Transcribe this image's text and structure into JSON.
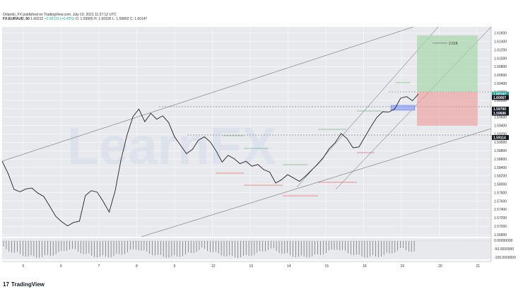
{
  "header": {
    "publisher": "Orlando_FX published on TradingView.com, July 19, 2021 11:27:12 UTC",
    "symbol": "FX:EURAUD, 60",
    "last": "1.60232",
    "change": "+0.00723 (+0.45%)",
    "ohlc": "O: 1.59905  H: 1.60335  L: 1.59892  C: 1.60147"
  },
  "watermark": "LearnFX",
  "footer": {
    "brand": "TradingView",
    "logo_glyph": "17"
  },
  "annotations": {
    "fib_label": "2.618"
  },
  "price_tags": [
    {
      "value": "1.60147",
      "color": "#26a69a"
    },
    {
      "value": "1.60067",
      "color": "#131722"
    },
    {
      "value": "1.59790",
      "color": "#131722"
    },
    {
      "value": "1.59696",
      "color": "#131722"
    },
    {
      "value": "1.59114",
      "color": "#131722"
    }
  ],
  "chart_data": {
    "type": "line",
    "title": "",
    "xlabel": "",
    "ylabel": "",
    "x_ticks": [
      "5",
      "6",
      "7",
      "8",
      "9",
      "12",
      "13",
      "14",
      "15",
      "16",
      "19",
      "20",
      "21"
    ],
    "y_ticks": [
      "1.61600",
      "1.61400",
      "1.61200",
      "1.61000",
      "1.60800",
      "1.60600",
      "1.60400",
      "1.60200",
      "1.60000",
      "1.59800",
      "1.59600",
      "1.59400",
      "1.59200",
      "1.59000",
      "1.58800",
      "1.58600",
      "1.58400",
      "1.58200",
      "1.58000",
      "1.57800",
      "1.57600",
      "1.57400",
      "1.57200",
      "1.57000",
      "1.56800"
    ],
    "ylim": [
      1.5675,
      1.6175
    ],
    "oscillator_ticks": [
      "0.00000000",
      "-50.0000000",
      "-100.0000000"
    ],
    "grid": true,
    "series": [
      {
        "values": [
          1.5855,
          1.5826,
          1.5788,
          1.5782,
          1.5789,
          1.5791,
          1.5779,
          1.5771,
          1.5748,
          1.5724,
          1.5711,
          1.5701,
          1.5709,
          1.5712,
          1.5773,
          1.5785,
          1.5781,
          1.5759,
          1.5734,
          1.5784,
          1.5859,
          1.5917,
          1.5961,
          1.5979,
          1.5949,
          1.5969,
          1.5955,
          1.5963,
          1.5947,
          1.5913,
          1.5893,
          1.5873,
          1.5883,
          1.5905,
          1.5913,
          1.5901,
          1.5879,
          1.5853,
          1.5869,
          1.5861,
          1.5849,
          1.5855,
          1.5843,
          1.5847,
          1.5835,
          1.5829,
          1.5803,
          1.5811,
          1.5823,
          1.5815,
          1.5807,
          1.5819,
          1.5833,
          1.5847,
          1.5863,
          1.5885,
          1.5899,
          1.5921,
          1.5909,
          1.5887,
          1.5889,
          1.5913,
          1.5937,
          1.5959,
          1.5973,
          1.5972,
          1.5979,
          1.6005,
          1.6009,
          1.5999,
          1.6015
        ]
      }
    ]
  }
}
